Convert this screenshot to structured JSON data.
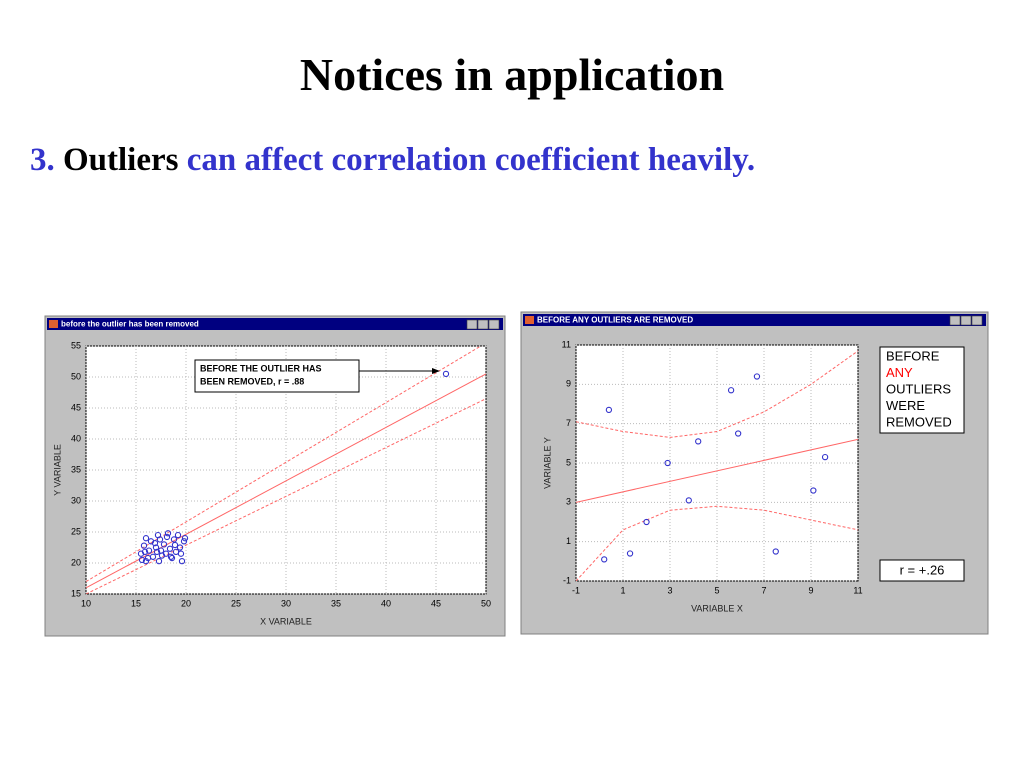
{
  "title": "Notices in application",
  "subtitle_parts": [
    "3.",
    "Outliers",
    "can affect correlation coefficient heavily."
  ],
  "chart_data": [
    {
      "type": "scatter",
      "window_title": "before the outlier has been removed",
      "xlabel": "X VARIABLE",
      "ylabel": "Y VARIABLE",
      "annotation": [
        "BEFORE THE OUTLIER HAS",
        "BEEN REMOVED,        r = .88"
      ],
      "xlim": [
        10,
        50
      ],
      "xticks": [
        10,
        15,
        20,
        25,
        30,
        35,
        40,
        45,
        50
      ],
      "ylim": [
        15,
        55
      ],
      "yticks": [
        15,
        20,
        25,
        30,
        35,
        40,
        45,
        50,
        55
      ],
      "grid": true,
      "color": "#3333cc",
      "x": [
        15.5,
        15.8,
        16,
        16.2,
        16.5,
        16.7,
        17,
        17.2,
        17.3,
        17.5,
        17.8,
        18,
        18.2,
        18.4,
        18.6,
        18.8,
        19,
        19.2,
        19.4,
        19.6,
        19.8,
        16.3,
        17.6,
        18.9,
        15.6,
        16.9,
        19.5,
        18.1,
        17.1,
        16,
        19.9,
        18.5,
        17.4,
        15.9,
        46
      ],
      "values": [
        21.5,
        22.8,
        24,
        20.8,
        23.5,
        21,
        22.5,
        24.5,
        20.3,
        22,
        23,
        21.5,
        24.8,
        22.3,
        20.8,
        23.8,
        21.8,
        24.5,
        22.5,
        20.3,
        23.5,
        22,
        21.2,
        22.9,
        20.5,
        23.2,
        21.5,
        24.2,
        21.8,
        20.3,
        24,
        21,
        23.8,
        21.8,
        50.5
      ],
      "line_color": "#ff6666",
      "fit_line": {
        "x": [
          10,
          50
        ],
        "y": [
          16,
          50.5
        ]
      },
      "band_upper": {
        "x": [
          10,
          50
        ],
        "y": [
          17,
          55.5
        ]
      },
      "band_lower": {
        "x": [
          10,
          50
        ],
        "y": [
          15,
          46.5
        ]
      }
    },
    {
      "type": "scatter",
      "window_title": "BEFORE ANY OUTLIERS ARE REMOVED",
      "xlabel": "VARIABLE X",
      "ylabel": "VARIABLE Y",
      "legend_box": [
        "BEFORE",
        "ANY",
        "OUTLIERS",
        "WERE",
        "REMOVED"
      ],
      "r_label": "r = +.26",
      "xlim": [
        -1,
        11
      ],
      "xticks": [
        -1,
        1,
        3,
        5,
        7,
        9,
        11
      ],
      "ylim": [
        -1,
        11
      ],
      "yticks": [
        -1,
        1,
        3,
        5,
        7,
        9,
        11
      ],
      "grid": true,
      "color": "#3333cc",
      "x": [
        0.2,
        0.4,
        1.3,
        2,
        2.9,
        3.8,
        4.2,
        5.6,
        5.9,
        6.7,
        7.5,
        9.1,
        9.6
      ],
      "values": [
        0.1,
        7.7,
        0.4,
        2,
        5,
        3.1,
        6.1,
        8.7,
        6.5,
        9.4,
        0.5,
        3.6,
        5.3
      ],
      "line_color": "#ff6666",
      "fit_line": {
        "x": [
          -1,
          11
        ],
        "y": [
          3,
          6.2
        ]
      },
      "band_upper": {
        "x": [
          -1,
          1,
          3,
          5,
          7,
          9,
          11
        ],
        "y": [
          7.1,
          6.6,
          6.3,
          6.6,
          7.6,
          9,
          10.7
        ]
      },
      "band_lower": {
        "x": [
          -1,
          1,
          3,
          5,
          7,
          9,
          11
        ],
        "y": [
          -1,
          1.6,
          2.6,
          2.8,
          2.6,
          2.1,
          1.6
        ]
      }
    }
  ]
}
